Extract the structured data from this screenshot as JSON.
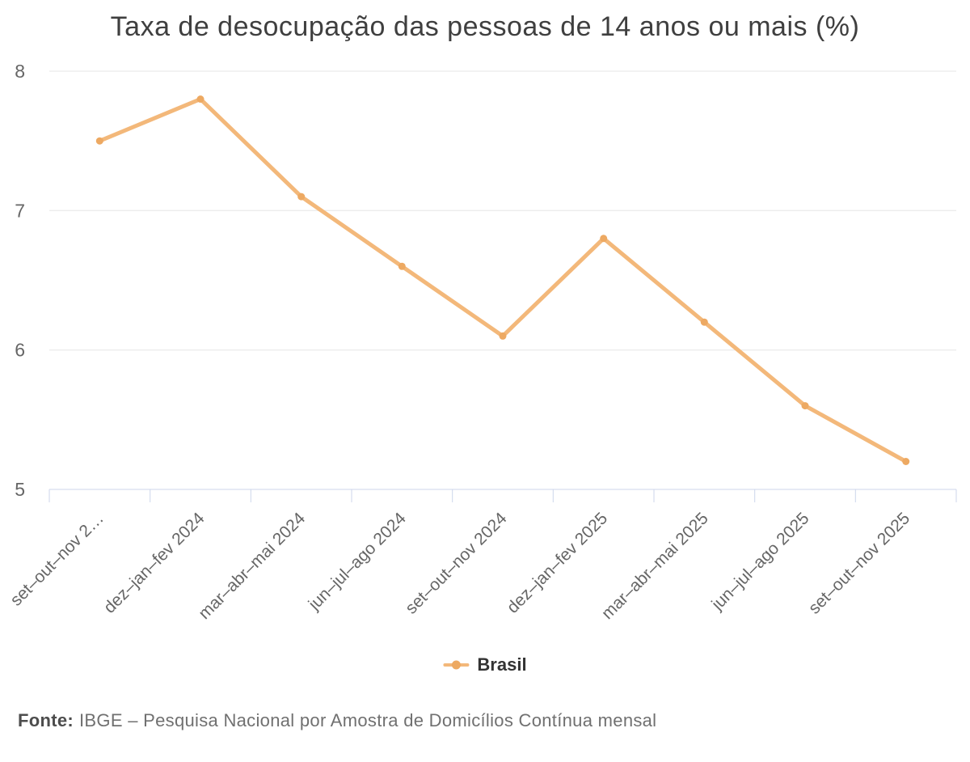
{
  "chart_data": {
    "type": "line",
    "title": "Taxa de desocupação das pessoas de 14 anos ou mais (%)",
    "categories": [
      "set–out–nov 2…",
      "dez–jan–fev 2024",
      "mar–abr–mai 2024",
      "jun–jul–ago 2024",
      "set–out–nov 2024",
      "dez–jan–fev 2025",
      "mar–abr–mai 2025",
      "jun–jul–ago 2025",
      "set–out–nov 2025"
    ],
    "series": [
      {
        "name": "Brasil",
        "values": [
          7.5,
          7.8,
          7.1,
          6.6,
          6.1,
          6.8,
          6.2,
          5.6,
          5.2
        ]
      }
    ],
    "xlabel": "",
    "ylabel": "",
    "ylim": [
      5,
      8
    ],
    "yticks": [
      5,
      6,
      7,
      8
    ],
    "grid": true,
    "legend_position": "bottom",
    "marker": "circle"
  },
  "legend": {
    "label": "Brasil"
  },
  "source": {
    "label": "Fonte:",
    "text": "IBGE – Pesquisa Nacional por Amostra de Domicílios Contínua mensal"
  },
  "colors": {
    "series_line": "#f3b87a",
    "marker": "#eda962",
    "grid_line": "#e6e6e6",
    "axis_line": "#ccd6eb",
    "title_text": "#3f3f3f",
    "axis_label_text": "#666666",
    "legend_text": "#333333",
    "source_label_text": "#4d4d4d",
    "source_text": "#707070"
  }
}
